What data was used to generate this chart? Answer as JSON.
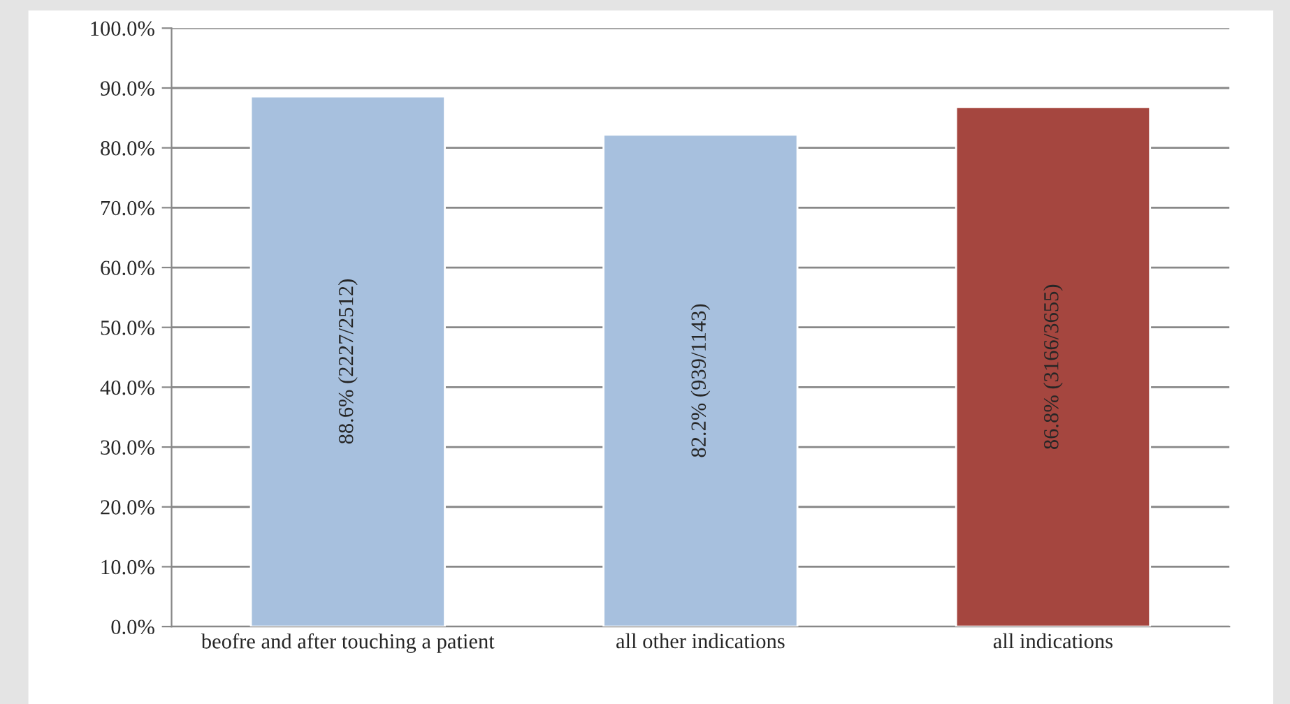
{
  "chart_data": {
    "type": "bar",
    "categories": [
      "beofre and after touching a patient",
      "all other indications",
      "all indications"
    ],
    "values": [
      88.6,
      82.2,
      86.8
    ],
    "colors": [
      "#a7c0de",
      "#a7c0de",
      "#a5463f"
    ],
    "value_labels": [
      "88.6% (2227/2512)",
      "82.2% (939/1143)",
      "86.8% (3166/3655)"
    ],
    "ylim": [
      0,
      100
    ],
    "yticks": [
      {
        "value": 0,
        "label": "0.0%"
      },
      {
        "value": 10,
        "label": "10.0%"
      },
      {
        "value": 20,
        "label": "20.0%"
      },
      {
        "value": 30,
        "label": "30.0%"
      },
      {
        "value": 40,
        "label": "40.0%"
      },
      {
        "value": 50,
        "label": "50.0%"
      },
      {
        "value": 60,
        "label": "60.0%"
      },
      {
        "value": 70,
        "label": "70.0%"
      },
      {
        "value": 80,
        "label": "80.0%"
      },
      {
        "value": 90,
        "label": "90.0%"
      },
      {
        "value": 100,
        "label": "100.0%"
      }
    ],
    "grid": "y",
    "legend": false
  }
}
